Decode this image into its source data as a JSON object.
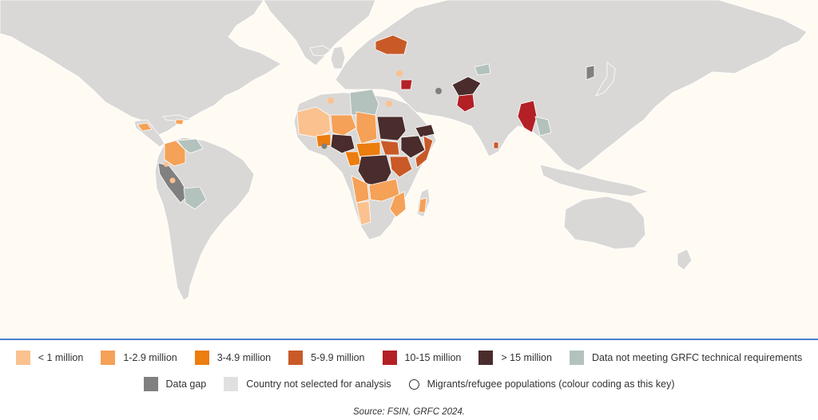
{
  "legend": {
    "items": [
      {
        "label": "< 1 million",
        "color": "#fbc28f"
      },
      {
        "label": "1-2.9 million",
        "color": "#f5a158"
      },
      {
        "label": "3-4.9 million",
        "color": "#ec7d0f"
      },
      {
        "label": "5-9.9 million",
        "color": "#c95a28"
      },
      {
        "label": "10-15 million",
        "color": "#b32026"
      },
      {
        "label": "> 15 million",
        "color": "#4a2c2c"
      },
      {
        "label": "Data not meeting GRFC technical requirements",
        "color": "#b3c2bd"
      },
      {
        "label": "Data gap",
        "color": "#808080"
      },
      {
        "label": "Country not selected for analysis",
        "color": "#e0e0e0"
      },
      {
        "label": "Migrants/refugee populations (colour coding as this key)",
        "icon": "circle-outline-icon"
      }
    ]
  },
  "source": "Source: FSIN, GRFC 2024."
}
